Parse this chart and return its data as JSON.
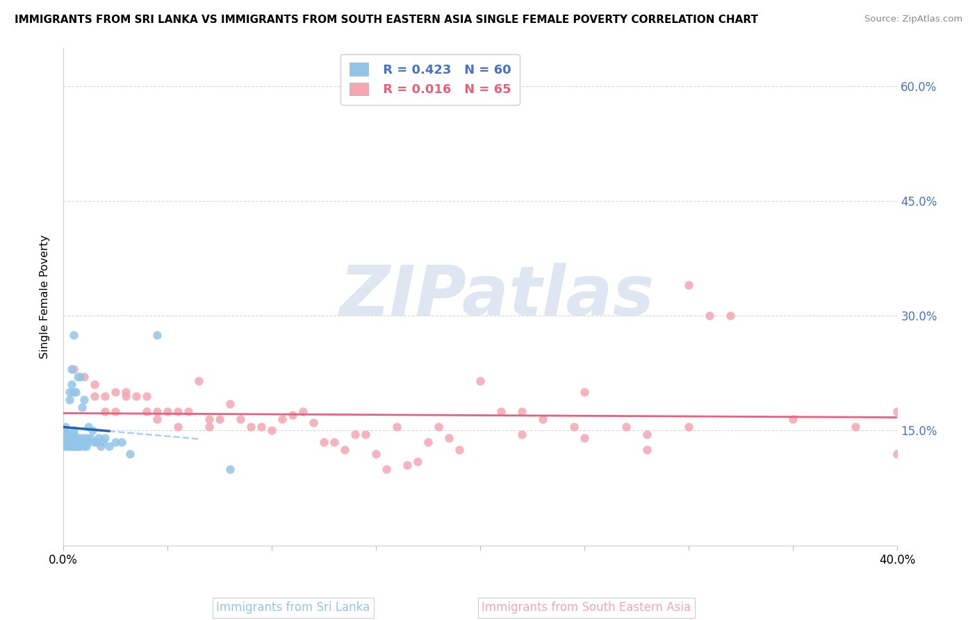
{
  "title": "IMMIGRANTS FROM SRI LANKA VS IMMIGRANTS FROM SOUTH EASTERN ASIA SINGLE FEMALE POVERTY CORRELATION CHART",
  "source": "Source: ZipAtlas.com",
  "ylabel": "Single Female Poverty",
  "legend_r1": "R = 0.423",
  "legend_n1": "N = 60",
  "legend_r2": "R = 0.016",
  "legend_n2": "N = 65",
  "color_sl": "#92c5e8",
  "color_sea": "#f4a7b0",
  "color_sl_line": "#2166ac",
  "color_sl_dash": "#92c5e8",
  "color_sea_line": "#e8607a",
  "color_right_tick": "#4472c4",
  "watermark_color": "#c8d8e8",
  "watermark_text": "ZIPatlas",
  "sl_x": [
    0.001,
    0.001,
    0.001,
    0.001,
    0.001,
    0.001,
    0.002,
    0.002,
    0.002,
    0.002,
    0.003,
    0.003,
    0.003,
    0.003,
    0.003,
    0.004,
    0.004,
    0.004,
    0.004,
    0.004,
    0.005,
    0.005,
    0.005,
    0.005,
    0.005,
    0.005,
    0.005,
    0.006,
    0.006,
    0.006,
    0.007,
    0.007,
    0.007,
    0.007,
    0.008,
    0.008,
    0.008,
    0.009,
    0.009,
    0.01,
    0.01,
    0.01,
    0.011,
    0.011,
    0.012,
    0.012,
    0.013,
    0.014,
    0.015,
    0.016,
    0.017,
    0.018,
    0.019,
    0.02,
    0.022,
    0.025,
    0.028,
    0.032,
    0.045,
    0.08
  ],
  "sl_y": [
    0.13,
    0.135,
    0.14,
    0.145,
    0.15,
    0.155,
    0.13,
    0.135,
    0.14,
    0.145,
    0.13,
    0.135,
    0.14,
    0.19,
    0.2,
    0.13,
    0.135,
    0.14,
    0.21,
    0.23,
    0.13,
    0.135,
    0.14,
    0.145,
    0.15,
    0.2,
    0.275,
    0.13,
    0.135,
    0.2,
    0.13,
    0.135,
    0.14,
    0.22,
    0.13,
    0.135,
    0.22,
    0.14,
    0.18,
    0.13,
    0.135,
    0.19,
    0.13,
    0.14,
    0.135,
    0.155,
    0.14,
    0.15,
    0.135,
    0.135,
    0.14,
    0.13,
    0.135,
    0.14,
    0.13,
    0.135,
    0.135,
    0.12,
    0.275,
    0.1
  ],
  "sea_x": [
    0.005,
    0.01,
    0.015,
    0.015,
    0.02,
    0.02,
    0.025,
    0.025,
    0.03,
    0.03,
    0.035,
    0.04,
    0.04,
    0.045,
    0.045,
    0.05,
    0.055,
    0.055,
    0.06,
    0.065,
    0.07,
    0.07,
    0.075,
    0.08,
    0.085,
    0.09,
    0.095,
    0.1,
    0.105,
    0.11,
    0.115,
    0.12,
    0.125,
    0.13,
    0.135,
    0.14,
    0.145,
    0.15,
    0.155,
    0.16,
    0.165,
    0.17,
    0.175,
    0.18,
    0.185,
    0.19,
    0.2,
    0.21,
    0.22,
    0.23,
    0.245,
    0.25,
    0.27,
    0.28,
    0.3,
    0.31,
    0.32,
    0.35,
    0.38,
    0.4,
    0.22,
    0.25,
    0.28,
    0.3,
    0.4
  ],
  "sea_y": [
    0.23,
    0.22,
    0.21,
    0.195,
    0.195,
    0.175,
    0.2,
    0.175,
    0.2,
    0.195,
    0.195,
    0.195,
    0.175,
    0.175,
    0.165,
    0.175,
    0.175,
    0.155,
    0.175,
    0.215,
    0.155,
    0.165,
    0.165,
    0.185,
    0.165,
    0.155,
    0.155,
    0.15,
    0.165,
    0.17,
    0.175,
    0.16,
    0.135,
    0.135,
    0.125,
    0.145,
    0.145,
    0.12,
    0.1,
    0.155,
    0.105,
    0.11,
    0.135,
    0.155,
    0.14,
    0.125,
    0.215,
    0.175,
    0.145,
    0.165,
    0.155,
    0.2,
    0.155,
    0.125,
    0.34,
    0.3,
    0.3,
    0.165,
    0.155,
    0.175,
    0.175,
    0.14,
    0.145,
    0.155,
    0.12
  ],
  "xmin": 0.0,
  "xmax": 0.4,
  "ymin": 0.0,
  "ymax": 0.65,
  "right_yticks": [
    0.15,
    0.3,
    0.45,
    0.6
  ],
  "right_ytick_labels": [
    "15.0%",
    "30.0%",
    "45.0%",
    "60.0%"
  ]
}
